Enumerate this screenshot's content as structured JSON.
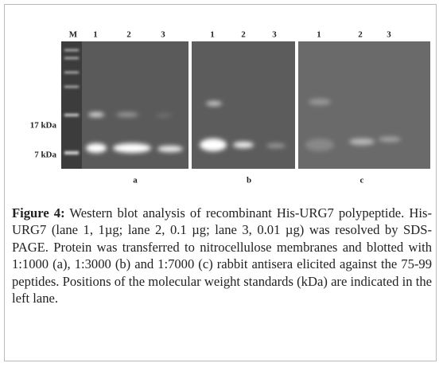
{
  "figure": {
    "marker_lane": "M",
    "markers": [
      "17 kDa",
      "7 kDa"
    ],
    "panels": [
      {
        "lanes": [
          "1",
          "2",
          "3"
        ],
        "label": "a"
      },
      {
        "lanes": [
          "1",
          "2",
          "3"
        ],
        "label": "b"
      },
      {
        "lanes": [
          "1",
          "2",
          "3"
        ],
        "label": "c"
      }
    ]
  },
  "caption": {
    "label": "Figure 4:",
    "text": "Western blot analysis of recombinant His-URG7 polypeptide. His-URG7 (lane 1, 1µg; lane 2, 0.1 µg; lane 3, 0.01 µg) was resolved by SDS-PAGE. Protein was transferred to nitrocellulose membranes and blotted with 1:1000 (a), 1:3000 (b) and 1:7000 (c) rabbit antisera elicited against the 75-99 peptides. Positions of the molecular weight standards (kDa) are indicated in the left lane."
  }
}
